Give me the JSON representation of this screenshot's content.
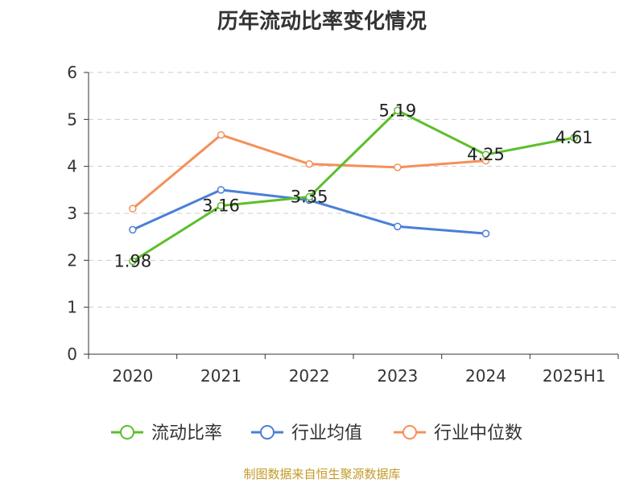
{
  "chart_data": {
    "type": "line",
    "title": "历年流动比率变化情况",
    "categories": [
      "2020",
      "2021",
      "2022",
      "2023",
      "2024",
      "2025H1"
    ],
    "ylim": [
      0,
      6
    ],
    "yticks": [
      "0",
      "1",
      "2",
      "3",
      "4",
      "5",
      "6"
    ],
    "grid": true,
    "legend_position": "bottom",
    "series": [
      {
        "name": "流动比率",
        "color": "#5cbf2a",
        "values": [
          1.98,
          3.16,
          3.35,
          5.19,
          4.25,
          4.61
        ],
        "labels": [
          "1.98",
          "3.16",
          "3.35",
          "5.19",
          "4.25",
          "4.61"
        ]
      },
      {
        "name": "行业均值",
        "color": "#4a7fd8",
        "values": [
          2.65,
          3.5,
          3.28,
          2.72,
          2.57,
          null
        ]
      },
      {
        "name": "行业中位数",
        "color": "#f5905a",
        "values": [
          3.1,
          4.67,
          4.05,
          3.98,
          4.12,
          null
        ]
      }
    ]
  },
  "footer": {
    "source": "制图数据来自恒生聚源数据库"
  }
}
